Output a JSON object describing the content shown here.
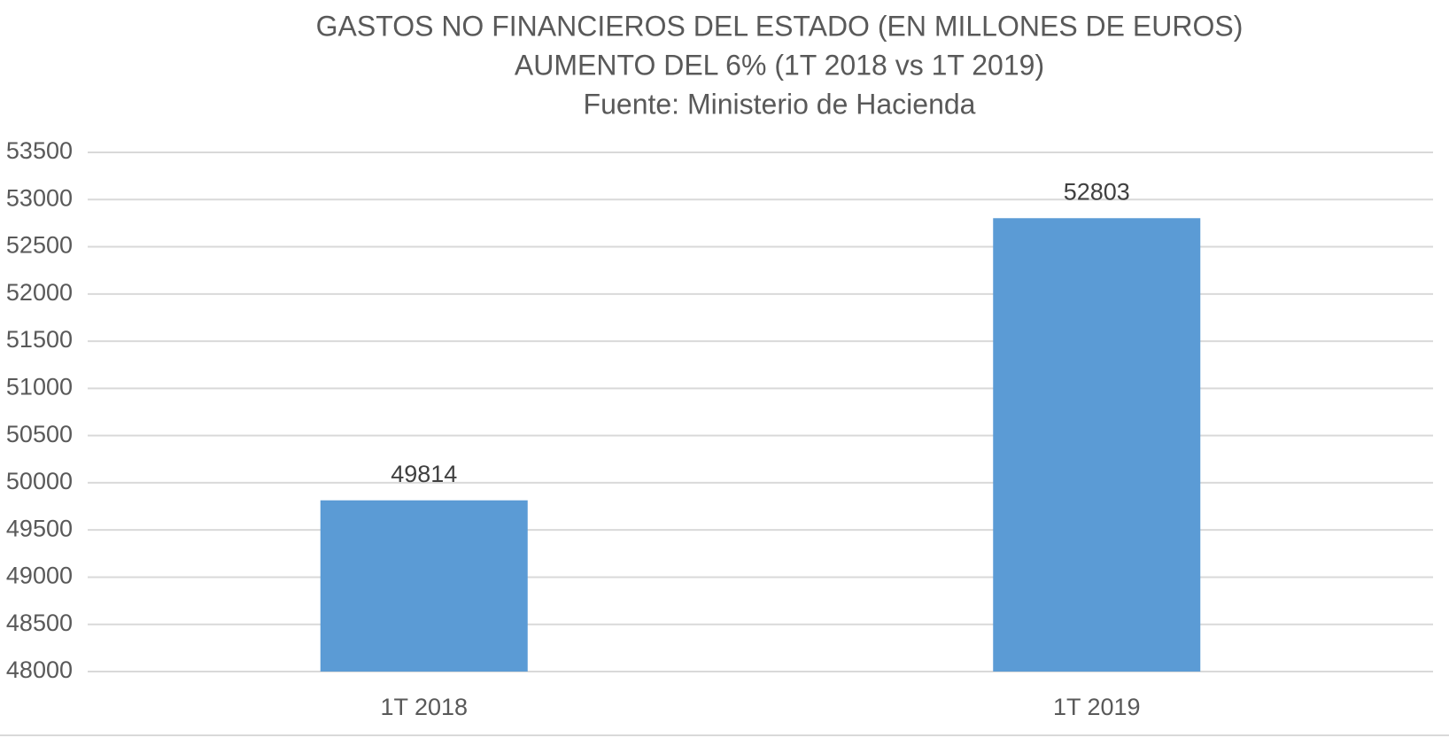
{
  "chart_data": {
    "type": "bar",
    "title": "GASTOS NO FINANCIEROS DEL ESTADO (EN MILLONES DE EUROS)",
    "subtitle": "AUMENTO DEL 6% (1T 2018 vs 1T 2019)",
    "source": "Fuente: Ministerio de Hacienda",
    "categories": [
      "1T 2018",
      "1T 2019"
    ],
    "values": [
      49814,
      52803
    ],
    "color": "#5b9bd5",
    "ylim": [
      48000,
      53500
    ],
    "yticks": [
      48000,
      48500,
      49000,
      49500,
      50000,
      50500,
      51000,
      51500,
      52000,
      52500,
      53000,
      53500
    ],
    "grid": true
  }
}
